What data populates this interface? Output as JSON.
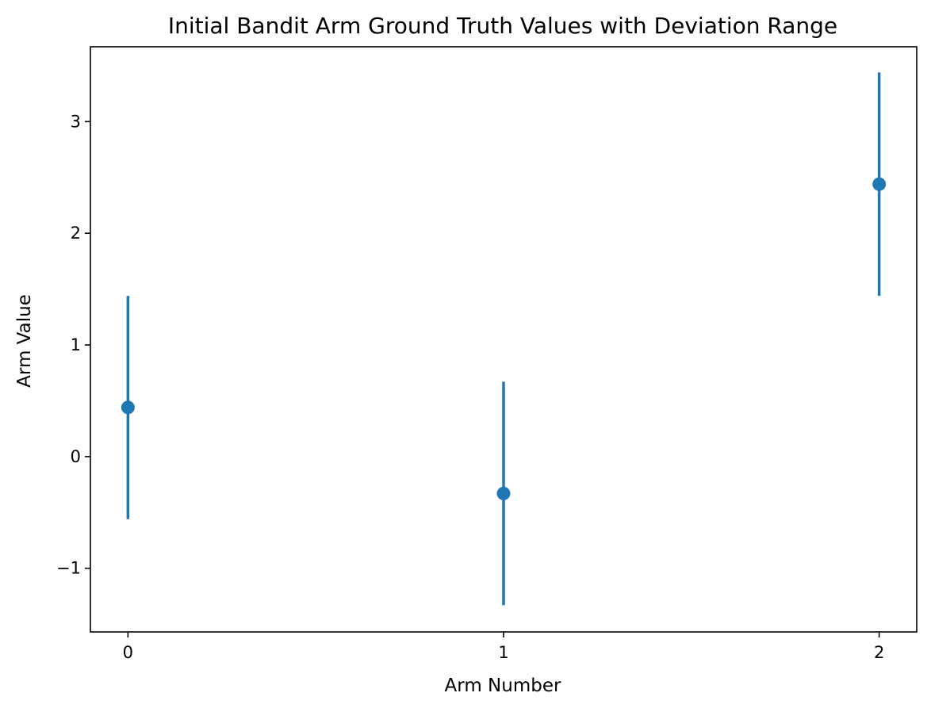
{
  "chart_data": {
    "type": "scatter",
    "title": "Initial Bandit Arm Ground Truth Values with Deviation Range",
    "xlabel": "Arm Number",
    "ylabel": "Arm Value",
    "x": [
      0,
      1,
      2
    ],
    "y": [
      0.44,
      -0.33,
      2.44
    ],
    "yerr": [
      1.0,
      1.0,
      1.0
    ],
    "xlim": [
      -0.1,
      2.1
    ],
    "ylim": [
      -1.57,
      3.67
    ],
    "xticks": [
      "0",
      "1",
      "2"
    ],
    "yticks": [
      "−1",
      "0",
      "1",
      "2",
      "3"
    ],
    "grid": false,
    "legend": "none",
    "color": "#1f77b4"
  }
}
